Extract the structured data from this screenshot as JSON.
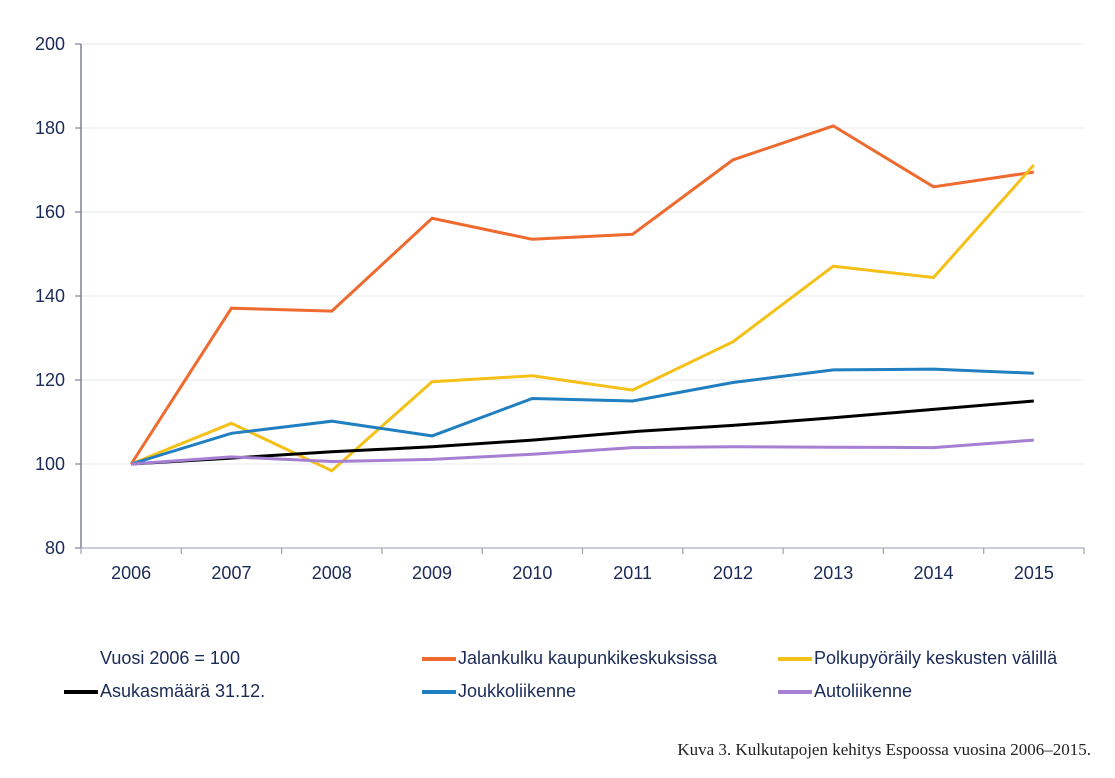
{
  "chart_data": {
    "type": "line",
    "title": "",
    "xlabel": "",
    "ylabel": "",
    "ylim": [
      80,
      200
    ],
    "yticks": [
      80,
      100,
      120,
      140,
      160,
      180,
      200
    ],
    "grid": true,
    "legend_position": "bottom",
    "categories": [
      "2006",
      "2007",
      "2008",
      "2009",
      "2010",
      "2011",
      "2012",
      "2013",
      "2014",
      "2015"
    ],
    "note": "Vuosi 2006 = 100",
    "series": [
      {
        "name": "Jalankulku kaupunkikeskuksissa",
        "color": "#ee6a2e",
        "values": [
          100,
          137.1,
          136.4,
          158.5,
          153.5,
          154.7,
          172.4,
          180.5,
          166.0,
          169.5
        ]
      },
      {
        "name": "Polkupyöräily keskusten välillä",
        "color": "#f5c018",
        "values": [
          100,
          109.7,
          98.4,
          119.6,
          121.0,
          117.6,
          129.1,
          147.1,
          144.4,
          171.2
        ]
      },
      {
        "name": "Asukasmäärä 31.12.",
        "color": "#000000",
        "values": [
          100,
          101.4,
          102.9,
          104.1,
          105.7,
          107.7,
          109.2,
          111.0,
          113.0,
          115.0
        ]
      },
      {
        "name": "Joukkoliikenne",
        "color": "#1f7fc1",
        "values": [
          100,
          107.3,
          110.2,
          106.7,
          115.6,
          115.0,
          119.4,
          122.4,
          122.6,
          121.6
        ]
      },
      {
        "name": "Autoliikenne",
        "color": "#a67fd3",
        "values": [
          100,
          101.7,
          100.6,
          101.1,
          102.3,
          103.9,
          104.1,
          104.0,
          103.9,
          105.7
        ]
      }
    ]
  },
  "legend": {
    "note": "Vuosi 2006 = 100",
    "items": [
      {
        "label": "Jalankulku kaupunkikeskuksissa",
        "color": "#ee6a2e"
      },
      {
        "label": "Polkupyöräily keskusten välillä",
        "color": "#f5c018"
      },
      {
        "label": "Asukasmäärä 31.12.",
        "color": "#000000"
      },
      {
        "label": "Joukkoliikenne",
        "color": "#1f7fc1"
      },
      {
        "label": "Autoliikenne",
        "color": "#a67fd3"
      }
    ]
  },
  "caption": "Kuva 3. Kulkutapojen kehitys Espoossa vuosina 2006–2015."
}
